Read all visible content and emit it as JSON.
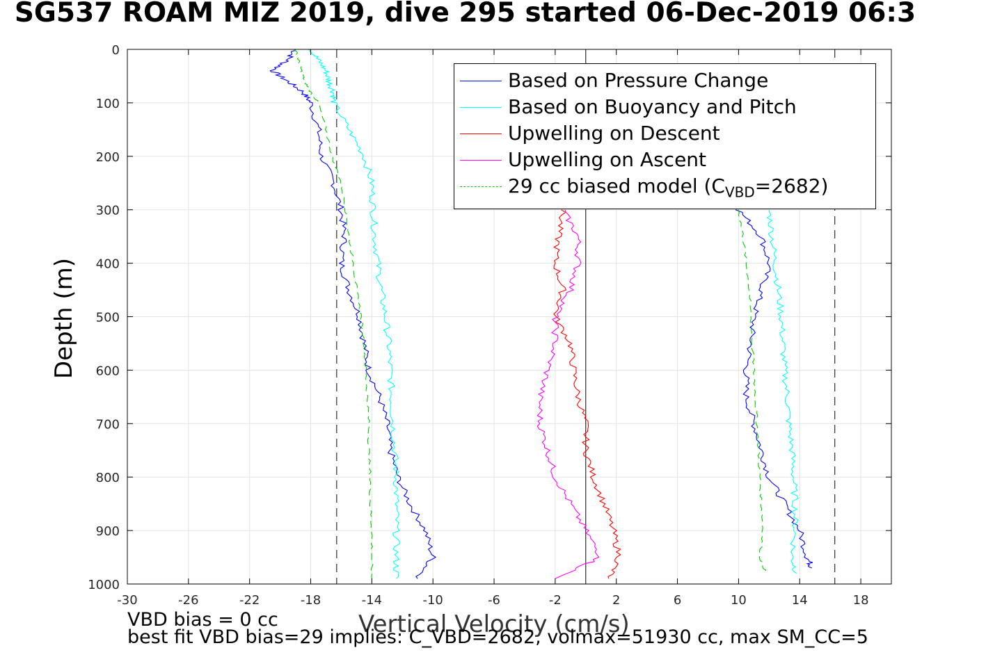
{
  "title": "SG537 ROAM MIZ 2019, dive 295 started 06-Dec-2019 06:3",
  "chart_data": {
    "type": "line",
    "title": "SG537 ROAM MIZ 2019, dive 295 started 06-Dec-2019 06:3",
    "xlabel": "Vertical Velocity (cm/s)",
    "ylabel": "Depth (m)",
    "xlim": [
      -30,
      20
    ],
    "ylim": [
      1000,
      0
    ],
    "xticks": [
      -30,
      -26,
      -22,
      -18,
      -14,
      -10,
      -6,
      -2,
      2,
      6,
      10,
      14,
      18
    ],
    "yticks": [
      0,
      100,
      200,
      300,
      400,
      500,
      600,
      700,
      800,
      900,
      1000
    ],
    "grid": true,
    "legend_position": "top-right",
    "reference_lines": {
      "solid_x": [
        0
      ],
      "dashed_x": [
        -16.3,
        16.3
      ]
    },
    "series": [
      {
        "name": "Based on Pressure Change",
        "color": "#0000ff",
        "style": "solid",
        "segments": [
          {
            "depth": [
              0,
              20,
              40,
              60,
              80,
              100,
              150,
              200,
              250,
              300,
              350,
              400,
              450,
              500,
              550,
              600,
              650,
              700,
              750,
              800,
              850,
              900,
              950,
              990
            ],
            "v": [
              -19,
              -19.5,
              -20.5,
              -19.5,
              -18.5,
              -18,
              -17.5,
              -17.3,
              -16.5,
              -16,
              -15.8,
              -16,
              -15.5,
              -14.8,
              -14.5,
              -14.2,
              -13.5,
              -13,
              -12.8,
              -12.3,
              -11.5,
              -10.5,
              -10,
              -11
            ]
          },
          {
            "depth": [
              300,
              350,
              400,
              450,
              500,
              550,
              600,
              650,
              700,
              750,
              800,
              850,
              900,
              950,
              970
            ],
            "v": [
              10,
              11.5,
              12,
              11.5,
              11,
              10.8,
              10.5,
              10.5,
              11,
              11.5,
              12,
              13,
              14,
              14.5,
              14.8
            ]
          }
        ]
      },
      {
        "name": "Based on Buoyancy and Pitch",
        "color": "#00ffff",
        "style": "solid",
        "segments": [
          {
            "depth": [
              0,
              20,
              40,
              60,
              80,
              100,
              150,
              200,
              250,
              300,
              350,
              400,
              450,
              500,
              550,
              600,
              650,
              700,
              750,
              800,
              850,
              900,
              950,
              990
            ],
            "v": [
              -18,
              -17.5,
              -17,
              -16.8,
              -16.5,
              -16.5,
              -15.5,
              -14.5,
              -14,
              -13.9,
              -13.8,
              -13.6,
              -13.4,
              -13.1,
              -12.9,
              -12.8,
              -12.7,
              -12.6,
              -12.5,
              -12.4,
              -12.4,
              -12.4,
              -12.4,
              -12.4
            ]
          },
          {
            "depth": [
              300,
              350,
              400,
              450,
              500,
              550,
              600,
              650,
              700,
              750,
              800,
              850,
              900,
              950,
              980
            ],
            "v": [
              12,
              12.2,
              12.4,
              12.6,
              12.8,
              12.9,
              13,
              13.2,
              13.3,
              13.5,
              13.6,
              13.7,
              13.7,
              13.5,
              13.8
            ]
          }
        ]
      },
      {
        "name": "Upwelling on Descent",
        "color": "#ff0000",
        "style": "solid",
        "segments": [
          {
            "depth": [
              300,
              350,
              400,
              450,
              500,
              550,
              600,
              650,
              700,
              750,
              800,
              850,
              900,
              950,
              990
            ],
            "v": [
              -1.5,
              -1.8,
              -2,
              -1.5,
              -2,
              -1,
              -0.8,
              -0.5,
              0,
              0,
              0.5,
              1.2,
              1.8,
              2.2,
              1.5
            ]
          }
        ]
      },
      {
        "name": "Upwelling on Ascent",
        "color": "#ff00ff",
        "style": "solid",
        "segments": [
          {
            "depth": [
              300,
              350,
              400,
              450,
              500,
              550,
              600,
              650,
              700,
              750,
              800,
              850,
              900,
              950,
              990
            ],
            "v": [
              -1.5,
              -0.5,
              -0.5,
              -1,
              -2,
              -2,
              -2.5,
              -3,
              -3,
              -2.5,
              -2,
              -1,
              0,
              1,
              -2
            ]
          }
        ]
      },
      {
        "name": "29 cc biased model (C",
        "name_sub": "VBD",
        "name_tail": "=2682)",
        "color": "#00cc00",
        "style": "dashed",
        "segments": [
          {
            "depth": [
              0,
              20,
              40,
              60,
              80,
              100,
              150,
              200,
              250,
              300,
              350,
              400,
              450,
              500,
              550,
              600,
              650,
              700,
              750,
              800,
              850,
              900,
              950,
              990
            ],
            "v": [
              -19,
              -18.8,
              -18.6,
              -18.4,
              -18,
              -17.5,
              -17,
              -16.6,
              -16,
              -15.7,
              -15.5,
              -15.2,
              -15,
              -14.7,
              -14.5,
              -14.4,
              -14.3,
              -14.2,
              -14.2,
              -14.1,
              -14.1,
              -14,
              -14,
              -14
            ]
          },
          {
            "depth": [
              300,
              350,
              400,
              450,
              500,
              550,
              600,
              650,
              700,
              750,
              800,
              850,
              900,
              950,
              980
            ],
            "v": [
              10,
              10.3,
              10.5,
              10.7,
              10.8,
              10.9,
              11,
              11.1,
              11.2,
              11.3,
              11.4,
              11.5,
              11.6,
              11.4,
              11.8
            ]
          }
        ]
      }
    ]
  },
  "notes": {
    "line1": "VBD bias = 0 cc",
    "line2": "best fit VBD bias=29 implies: C_VBD=2682, volmax=51930 cc, max SM_CC=5"
  }
}
